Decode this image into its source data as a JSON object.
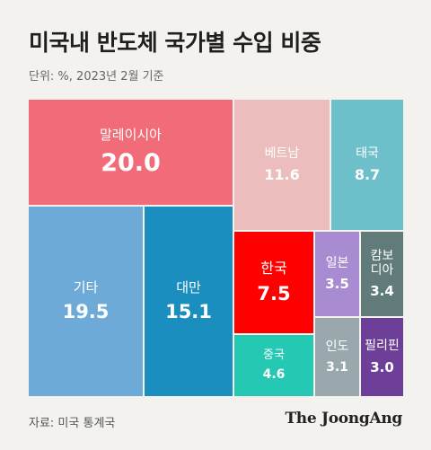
{
  "header": {
    "title": "미국내 반도체 국가별 수입 비중",
    "subtitle": "단위: %, 2023년 2월 기준"
  },
  "footer": {
    "source": "자료: 미국 통계국",
    "brand": "The JoongAng"
  },
  "chart_data": {
    "type": "treemap",
    "title": "미국내 반도체 국가별 수입 비중",
    "subtitle": "단위: %, 2023년 2월 기준",
    "unit": "%",
    "items": [
      {
        "label": "말레이시아",
        "value": 20.0,
        "value_label": "20.0",
        "color": "#f26b79",
        "text_color": "#ffffff"
      },
      {
        "label": "기타",
        "value": 19.5,
        "value_label": "19.5",
        "color": "#6daad8",
        "text_color": "#ffffff"
      },
      {
        "label": "대만",
        "value": 15.1,
        "value_label": "15.1",
        "color": "#1a8ebf",
        "text_color": "#ffffff"
      },
      {
        "label": "베트남",
        "value": 11.6,
        "value_label": "11.6",
        "color": "#ebbdbd",
        "text_color": "#ffffff"
      },
      {
        "label": "태국",
        "value": 8.7,
        "value_label": "8.7",
        "color": "#6dbfca",
        "text_color": "#ffffff"
      },
      {
        "label": "한국",
        "value": 7.5,
        "value_label": "7.5",
        "color": "#ff0000",
        "text_color": "#ffffff"
      },
      {
        "label": "중국",
        "value": 4.6,
        "value_label": "4.6",
        "color": "#25c8b2",
        "text_color": "#ffffff"
      },
      {
        "label": "일본",
        "value": 3.5,
        "value_label": "3.5",
        "color": "#a98bd2",
        "text_color": "#ffffff"
      },
      {
        "label": "캄보\n디아",
        "value": 3.4,
        "value_label": "3.4",
        "color": "#617a7a",
        "text_color": "#ffffff"
      },
      {
        "label": "인도",
        "value": 3.1,
        "value_label": "3.1",
        "color": "#9aa7ad",
        "text_color": "#ffffff"
      },
      {
        "label": "필리핀",
        "value": 3.0,
        "value_label": "3.0",
        "color": "#6e3f98",
        "text_color": "#ffffff"
      }
    ]
  }
}
